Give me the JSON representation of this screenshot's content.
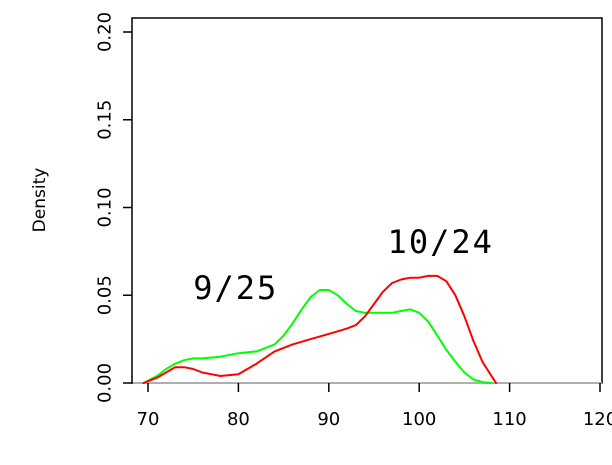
{
  "chart_data": {
    "type": "line",
    "title": "",
    "xlabel": "",
    "ylabel": "Density",
    "xlim": [
      70,
      120
    ],
    "ylim": [
      0,
      0.2
    ],
    "x_ticks": [
      70,
      80,
      90,
      100,
      110,
      120
    ],
    "y_ticks": [
      0.0,
      0.05,
      0.1,
      0.15,
      0.2
    ],
    "x_tick_labels": [
      "70",
      "80",
      "90",
      "100",
      "110",
      "120"
    ],
    "y_tick_labels": [
      "0.00",
      "0.05",
      "0.10",
      "0.15",
      "0.20"
    ],
    "grid": false,
    "legend": "none",
    "baseline": {
      "y": 0,
      "color": "#bebebe"
    },
    "series": [
      {
        "name": "9/25",
        "color": "#00ff00",
        "x": [
          69.5,
          71,
          72,
          73,
          74,
          75,
          76,
          78,
          80,
          82,
          84,
          85,
          86,
          87,
          88,
          89,
          90,
          91,
          92,
          93,
          94,
          95,
          96,
          97,
          98,
          99,
          100,
          101,
          102,
          103,
          104,
          105,
          106,
          107,
          108
        ],
        "y": [
          0.0,
          0.004,
          0.008,
          0.011,
          0.013,
          0.014,
          0.014,
          0.015,
          0.017,
          0.018,
          0.022,
          0.027,
          0.034,
          0.042,
          0.049,
          0.053,
          0.053,
          0.05,
          0.045,
          0.041,
          0.04,
          0.04,
          0.04,
          0.04,
          0.041,
          0.042,
          0.04,
          0.035,
          0.027,
          0.019,
          0.012,
          0.006,
          0.002,
          0.0005,
          0.0
        ]
      },
      {
        "name": "10/24",
        "color": "#ff0000",
        "x": [
          69.5,
          71,
          72,
          73,
          74,
          75,
          76,
          77,
          78,
          80,
          82,
          84,
          86,
          88,
          90,
          92,
          93,
          94,
          95,
          96,
          97,
          98,
          99,
          100,
          101,
          102,
          103,
          104,
          105,
          106,
          107,
          108,
          108.5
        ],
        "y": [
          0.0,
          0.003,
          0.006,
          0.009,
          0.009,
          0.008,
          0.006,
          0.005,
          0.004,
          0.005,
          0.011,
          0.018,
          0.022,
          0.025,
          0.028,
          0.031,
          0.033,
          0.038,
          0.045,
          0.052,
          0.057,
          0.059,
          0.06,
          0.06,
          0.061,
          0.061,
          0.058,
          0.05,
          0.038,
          0.024,
          0.012,
          0.004,
          0.0
        ]
      }
    ],
    "annotations": [
      {
        "text": "9/25",
        "x": 75.0,
        "y": 0.048
      },
      {
        "text": "10/24",
        "x": 96.5,
        "y": 0.074
      }
    ]
  }
}
